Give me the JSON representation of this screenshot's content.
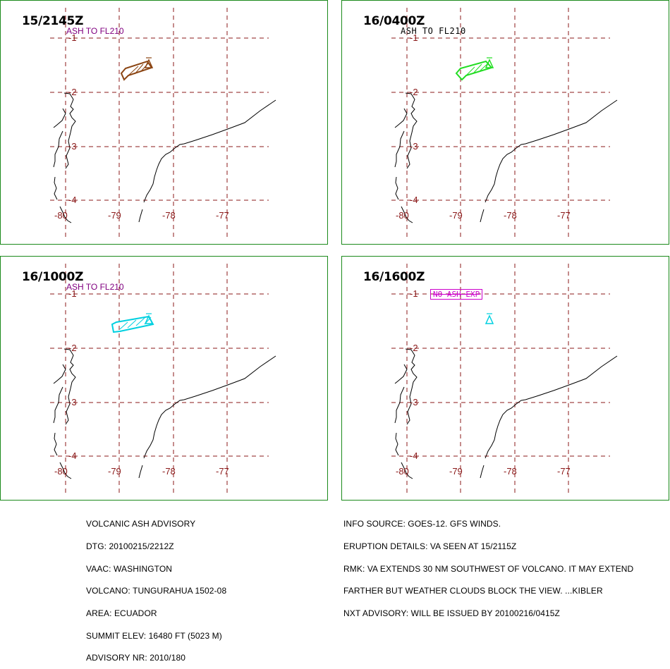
{
  "map": {
    "lat_tick_labels": [
      "-1",
      "-2",
      "-3",
      "-4"
    ],
    "lon_tick_labels": [
      "-80",
      "-79",
      "-78",
      "-77"
    ],
    "volcano_symbol": "volcano-triangle-icon"
  },
  "panels": [
    {
      "time": "15/2145Z",
      "label": "ASH TO FL210",
      "label_color": "#800080",
      "label_style": "plain",
      "plume_color": "#8B4513",
      "plume": true
    },
    {
      "time": "16/0400Z",
      "label": "ASH TO FL210",
      "label_color": "#000000",
      "label_style": "mono",
      "plume_color": "#22dd22",
      "plume": true
    },
    {
      "time": "16/1000Z",
      "label": "ASH TO FL210",
      "label_color": "#800080",
      "label_style": "plain",
      "plume_color": "#00d0e0",
      "plume": true
    },
    {
      "time": "16/1600Z",
      "label": "NO ASH EXP",
      "label_color": "#cc00cc",
      "label_style": "boxed",
      "plume_color": "#00d0e0",
      "plume": false
    }
  ],
  "advisory_left": [
    "VOLCANIC ASH ADVISORY",
    "DTG: 20100215/2212Z",
    "VAAC: WASHINGTON",
    "VOLCANO: TUNGURAHUA 1502-08",
    "AREA: ECUADOR",
    "SUMMIT ELEV: 16480 FT (5023 M)",
    "ADVISORY NR: 2010/180"
  ],
  "advisory_right": [
    "INFO SOURCE: GOES-12. GFS WINDS.",
    "ERUPTION DETAILS: VA SEEN AT 15/2115Z",
    "RMK: VA EXTENDS 30 NM SOUTHWEST OF VOLCANO. IT MAY EXTEND",
    "FARTHER BUT WEATHER CLOUDS BLOCK THE VIEW. ...KIBLER",
    "NXT ADVISORY: WILL BE ISSUED BY 20100216/0415Z"
  ],
  "colors": {
    "panel_border": "#1b8a1b",
    "grid": "#8b1a1a",
    "coast": "#000000"
  }
}
